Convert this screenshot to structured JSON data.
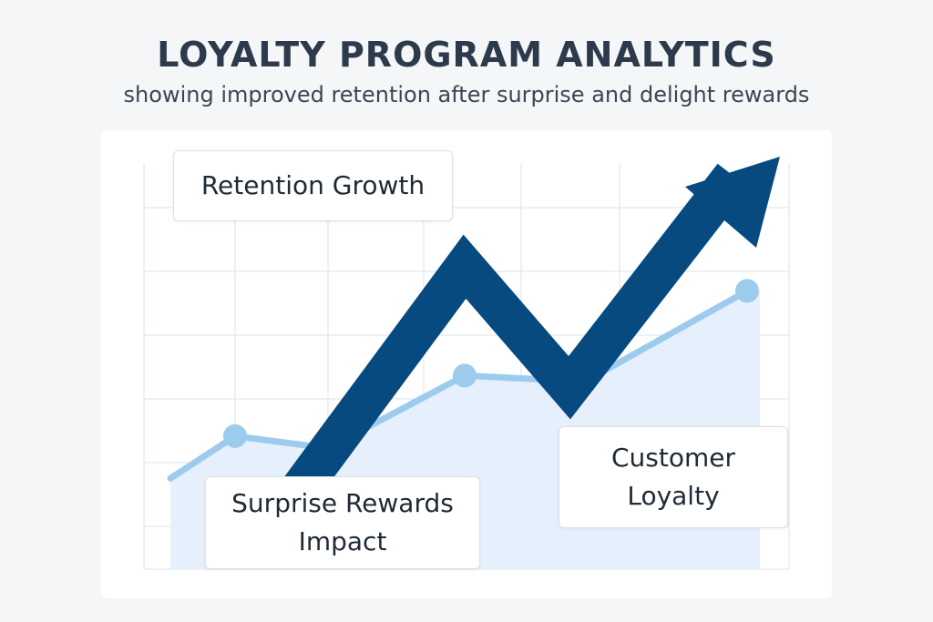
{
  "header": {
    "title": "LOYALTY PROGRAM ANALYTICS",
    "subtitle": "showing improved retention after surprise and delight rewards"
  },
  "labels": {
    "retention_growth": "Retention Growth",
    "surprise_rewards": "Surprise Rewards\nImpact",
    "customer_loyalty": "Customer\nLoyalty"
  },
  "colors": {
    "line": "#9ccbee",
    "area": "#e6f0fc",
    "arrow": "#064a80",
    "grid": "#e8ebef"
  },
  "chart_data": {
    "type": "area",
    "grid": true,
    "series": [
      {
        "values": [
          1.5,
          2.2,
          2.0,
          3.2,
          3.1,
          4.6
        ]
      }
    ],
    "trend_arrow": [
      1.8,
      5.0,
      3.0,
      6.5
    ]
  }
}
